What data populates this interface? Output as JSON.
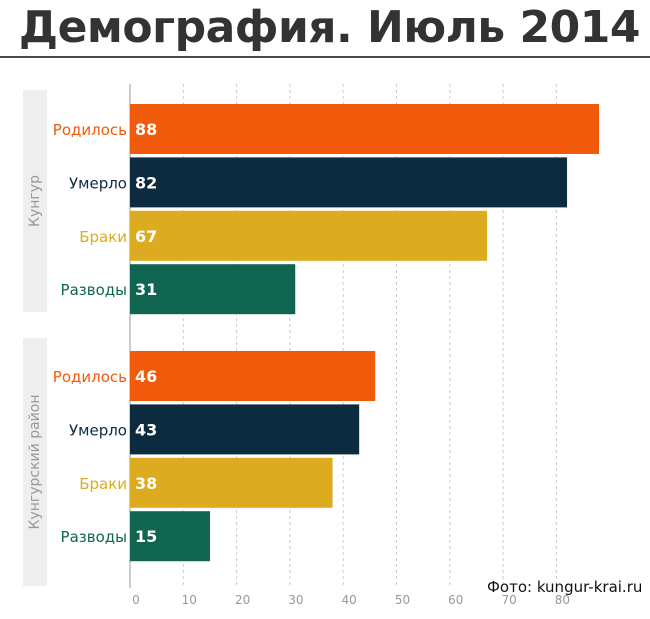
{
  "page": {
    "title": "Демография. Июль 2014"
  },
  "credit": "Фото: kungur-krai.ru",
  "colors": {
    "born": "#f05a0a",
    "died": "#0d2b3e",
    "marriages": "#dcab1f",
    "divorces": "#106551",
    "group_band": "#eeeeee",
    "grid": "#cccccc",
    "tick": "#999999",
    "group_label": "#999999"
  },
  "chart_data": {
    "type": "bar",
    "orientation": "horizontal",
    "categories": [
      "Родилось",
      "Умерло",
      "Браки",
      "Разводы"
    ],
    "category_colors": [
      "#f05a0a",
      "#0d2b3e",
      "#dcab1f",
      "#106551"
    ],
    "groups": [
      {
        "name": "Кунгур",
        "values": [
          88,
          82,
          67,
          31
        ]
      },
      {
        "name": "Кунгурский район",
        "values": [
          46,
          43,
          38,
          15
        ]
      }
    ],
    "xlim": [
      0,
      90
    ],
    "xticks": [
      0,
      10,
      20,
      30,
      40,
      50,
      60,
      70,
      80
    ],
    "grid": "vertical dashed"
  }
}
